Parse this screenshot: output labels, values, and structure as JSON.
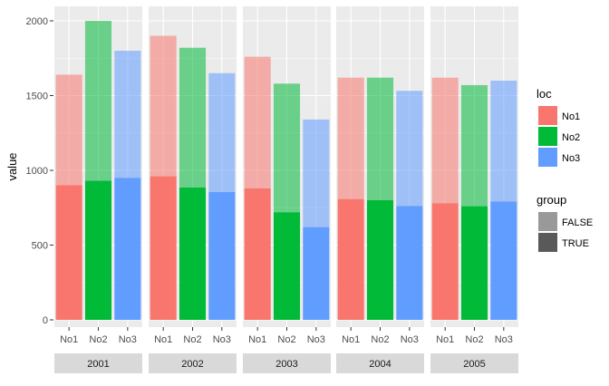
{
  "chart_data": {
    "type": "bar",
    "stacked": true,
    "facets": [
      "2001",
      "2002",
      "2003",
      "2004",
      "2005"
    ],
    "categories": [
      "No1",
      "No2",
      "No3"
    ],
    "ylabel": "value",
    "xlabel": "",
    "ylim": [
      0,
      2000
    ],
    "yticks": [
      0,
      500,
      1000,
      1500,
      2000
    ],
    "grid": true,
    "legend_position": "right",
    "colors": {
      "No1": "#F8766D",
      "No2": "#00BA38",
      "No3": "#619CFF"
    },
    "series": [
      {
        "name": "TRUE",
        "values": {
          "2001": [
            900,
            930,
            950
          ],
          "2002": [
            960,
            885,
            855
          ],
          "2003": [
            880,
            720,
            620
          ],
          "2004": [
            808,
            800,
            762
          ],
          "2005": [
            780,
            760,
            792
          ]
        }
      },
      {
        "name": "FALSE",
        "values": {
          "2001": [
            740,
            1070,
            850
          ],
          "2002": [
            940,
            935,
            795
          ],
          "2003": [
            880,
            860,
            720
          ],
          "2004": [
            812,
            820,
            770
          ],
          "2005": [
            840,
            810,
            808
          ]
        }
      }
    ],
    "legends": [
      {
        "title": "loc",
        "items": [
          "No1",
          "No2",
          "No3"
        ]
      },
      {
        "title": "group",
        "items": [
          "FALSE",
          "TRUE"
        ],
        "colors": [
          "#999999",
          "#595959"
        ]
      }
    ]
  }
}
